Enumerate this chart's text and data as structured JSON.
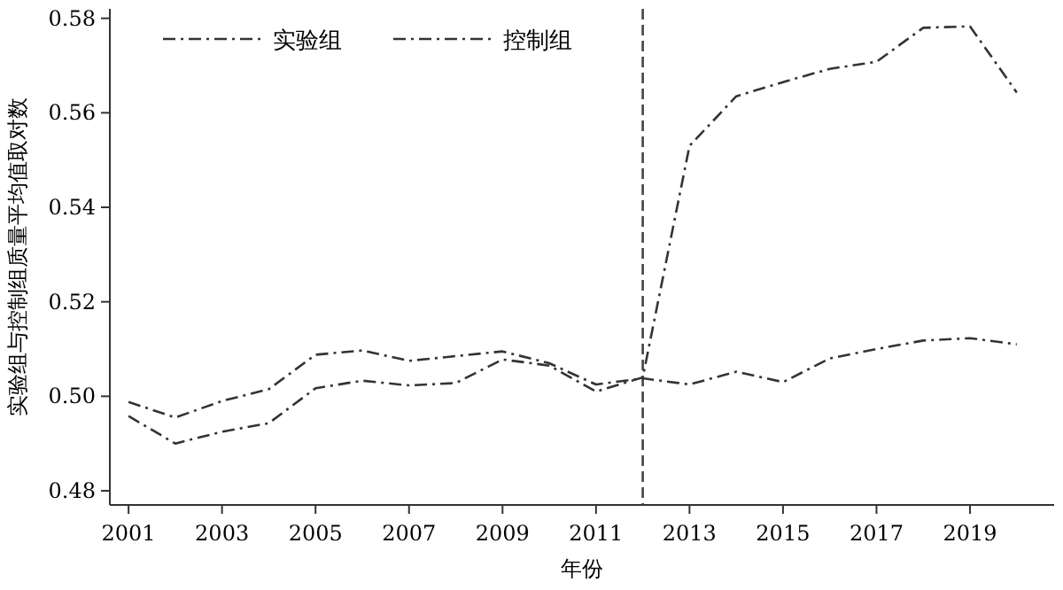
{
  "chart_data": {
    "type": "line",
    "xlabel": "年份",
    "ylabel": "实验组与控制组质量平均值取对数",
    "x": [
      2001,
      2002,
      2003,
      2004,
      2005,
      2006,
      2007,
      2008,
      2009,
      2010,
      2011,
      2012,
      2013,
      2014,
      2015,
      2016,
      2017,
      2018,
      2019,
      2020
    ],
    "series": [
      {
        "name": "实验组",
        "color": "#333333",
        "line_style": "dashed",
        "values": [
          0.4958,
          0.49,
          0.4925,
          0.4943,
          0.5017,
          0.5033,
          0.5023,
          0.5028,
          0.5078,
          0.5065,
          0.501,
          0.504,
          0.553,
          0.5635,
          0.5665,
          0.5693,
          0.5708,
          0.578,
          0.5783,
          0.5643
        ]
      },
      {
        "name": "控制组",
        "color": "#333333",
        "line_style": "dashed",
        "values": [
          0.4988,
          0.4955,
          0.499,
          0.5015,
          0.5088,
          0.5097,
          0.5075,
          0.5085,
          0.5095,
          0.507,
          0.5025,
          0.5038,
          0.5025,
          0.5052,
          0.503,
          0.508,
          0.51,
          0.5118,
          0.5123,
          0.511
        ]
      }
    ],
    "xlim": [
      2000.6,
      2020.8
    ],
    "xticks": [
      2001,
      2003,
      2005,
      2007,
      2009,
      2011,
      2013,
      2015,
      2017,
      2019
    ],
    "ylim": [
      0.477,
      0.582
    ],
    "yticks": [
      {
        "value": 0.48,
        "label": "0.48"
      },
      {
        "value": 0.5,
        "label": "0.50"
      },
      {
        "value": 0.52,
        "label": "0.52"
      },
      {
        "value": 0.54,
        "label": "0.54"
      },
      {
        "value": 0.56,
        "label": "0.56"
      },
      {
        "value": 0.58,
        "label": "0.58"
      }
    ],
    "ref_lines": [
      {
        "axis": "x",
        "value": 2012,
        "line_style": "dashed",
        "color": "#444444"
      }
    ],
    "legend": "top left",
    "grid": false
  }
}
